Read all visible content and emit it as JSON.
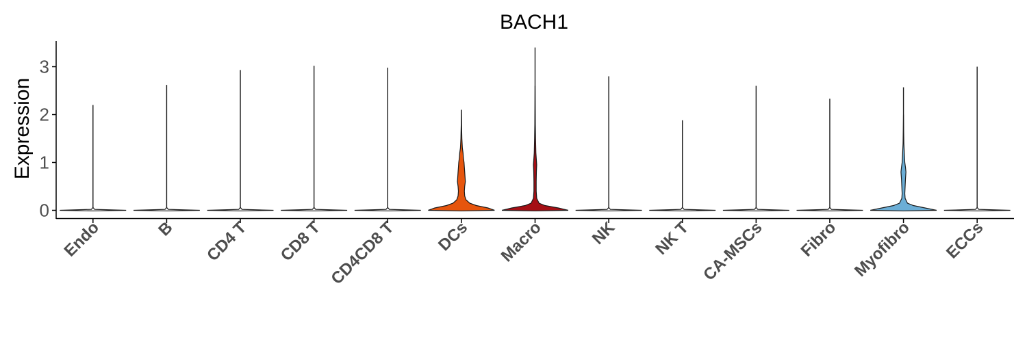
{
  "chart_data": {
    "type": "violin",
    "title": "BACH1",
    "xlabel": "",
    "ylabel": "Expression",
    "ylim": [
      -0.2,
      3.55
    ],
    "yticks": [
      0,
      1,
      2,
      3
    ],
    "grid": false,
    "legend": "none",
    "categories": [
      "Endo",
      "B",
      "CD4 T",
      "CD8 T",
      "CD4CD8 T",
      "DCs",
      "Macro",
      "NK",
      "NK T",
      "CA-MSCs",
      "Fibro",
      "Myofibro",
      "ECCs"
    ],
    "violins": [
      {
        "category": "Endo",
        "max": 2.2,
        "color": "#ffffff",
        "density": [
          [
            0,
            1.0
          ],
          [
            0.02,
            0.05
          ],
          [
            0.06,
            0.0
          ]
        ]
      },
      {
        "category": "B",
        "max": 2.62,
        "color": "#ffffff",
        "density": [
          [
            0,
            1.0
          ],
          [
            0.02,
            0.05
          ],
          [
            0.06,
            0.0
          ]
        ]
      },
      {
        "category": "CD4 T",
        "max": 2.93,
        "color": "#ffffff",
        "density": [
          [
            0,
            1.0
          ],
          [
            0.02,
            0.05
          ],
          [
            0.06,
            0.0
          ]
        ]
      },
      {
        "category": "CD8 T",
        "max": 3.02,
        "color": "#ffffff",
        "density": [
          [
            0,
            1.0
          ],
          [
            0.02,
            0.05
          ],
          [
            0.06,
            0.0
          ]
        ]
      },
      {
        "category": "CD4CD8 T",
        "max": 2.98,
        "color": "#ffffff",
        "density": [
          [
            0,
            1.0
          ],
          [
            0.02,
            0.05
          ],
          [
            0.06,
            0.0
          ]
        ]
      },
      {
        "category": "DCs",
        "max": 2.1,
        "color": "#e6550d",
        "density": [
          [
            0,
            1.0
          ],
          [
            0.05,
            0.8
          ],
          [
            0.1,
            0.45
          ],
          [
            0.15,
            0.25
          ],
          [
            0.22,
            0.14
          ],
          [
            0.3,
            0.1
          ],
          [
            0.4,
            0.09
          ],
          [
            0.5,
            0.1
          ],
          [
            0.6,
            0.12
          ],
          [
            0.7,
            0.11
          ],
          [
            0.8,
            0.1
          ],
          [
            0.9,
            0.09
          ],
          [
            1.0,
            0.08
          ],
          [
            1.1,
            0.06
          ],
          [
            1.2,
            0.05
          ],
          [
            1.3,
            0.03
          ],
          [
            1.5,
            0.015
          ],
          [
            1.8,
            0.005
          ],
          [
            2.1,
            0.0
          ]
        ]
      },
      {
        "category": "Macro",
        "max": 3.4,
        "color": "#a50f15",
        "density": [
          [
            0,
            1.0
          ],
          [
            0.05,
            0.7
          ],
          [
            0.1,
            0.3
          ],
          [
            0.15,
            0.12
          ],
          [
            0.25,
            0.05
          ],
          [
            0.4,
            0.035
          ],
          [
            0.6,
            0.035
          ],
          [
            0.8,
            0.04
          ],
          [
            0.95,
            0.05
          ],
          [
            1.05,
            0.04
          ],
          [
            1.2,
            0.025
          ],
          [
            1.5,
            0.015
          ],
          [
            1.8,
            0.008
          ],
          [
            2.2,
            0.003
          ],
          [
            2.6,
            0.0
          ]
        ]
      },
      {
        "category": "NK",
        "max": 2.8,
        "color": "#ffffff",
        "density": [
          [
            0,
            1.0
          ],
          [
            0.02,
            0.05
          ],
          [
            0.06,
            0.0
          ]
        ]
      },
      {
        "category": "NK T",
        "max": 1.88,
        "color": "#ffffff",
        "density": [
          [
            0,
            1.0
          ],
          [
            0.02,
            0.05
          ],
          [
            0.06,
            0.0
          ]
        ]
      },
      {
        "category": "CA-MSCs",
        "max": 2.6,
        "color": "#ffffff",
        "density": [
          [
            0,
            1.0
          ],
          [
            0.02,
            0.05
          ],
          [
            0.06,
            0.0
          ]
        ]
      },
      {
        "category": "Fibro",
        "max": 2.33,
        "color": "#ffffff",
        "density": [
          [
            0,
            1.0
          ],
          [
            0.02,
            0.05
          ],
          [
            0.06,
            0.0
          ]
        ]
      },
      {
        "category": "Myofibro",
        "max": 2.57,
        "color": "#6baed6",
        "density": [
          [
            0,
            1.0
          ],
          [
            0.05,
            0.65
          ],
          [
            0.1,
            0.3
          ],
          [
            0.15,
            0.12
          ],
          [
            0.25,
            0.05
          ],
          [
            0.35,
            0.04
          ],
          [
            0.5,
            0.05
          ],
          [
            0.65,
            0.06
          ],
          [
            0.8,
            0.075
          ],
          [
            0.9,
            0.06
          ],
          [
            1.0,
            0.04
          ],
          [
            1.2,
            0.025
          ],
          [
            1.4,
            0.012
          ],
          [
            1.7,
            0.005
          ],
          [
            2.0,
            0.0
          ]
        ]
      },
      {
        "category": "ECCs",
        "max": 3.0,
        "color": "#ffffff",
        "density": [
          [
            0,
            1.0
          ],
          [
            0.02,
            0.05
          ],
          [
            0.06,
            0.0
          ]
        ]
      }
    ]
  }
}
